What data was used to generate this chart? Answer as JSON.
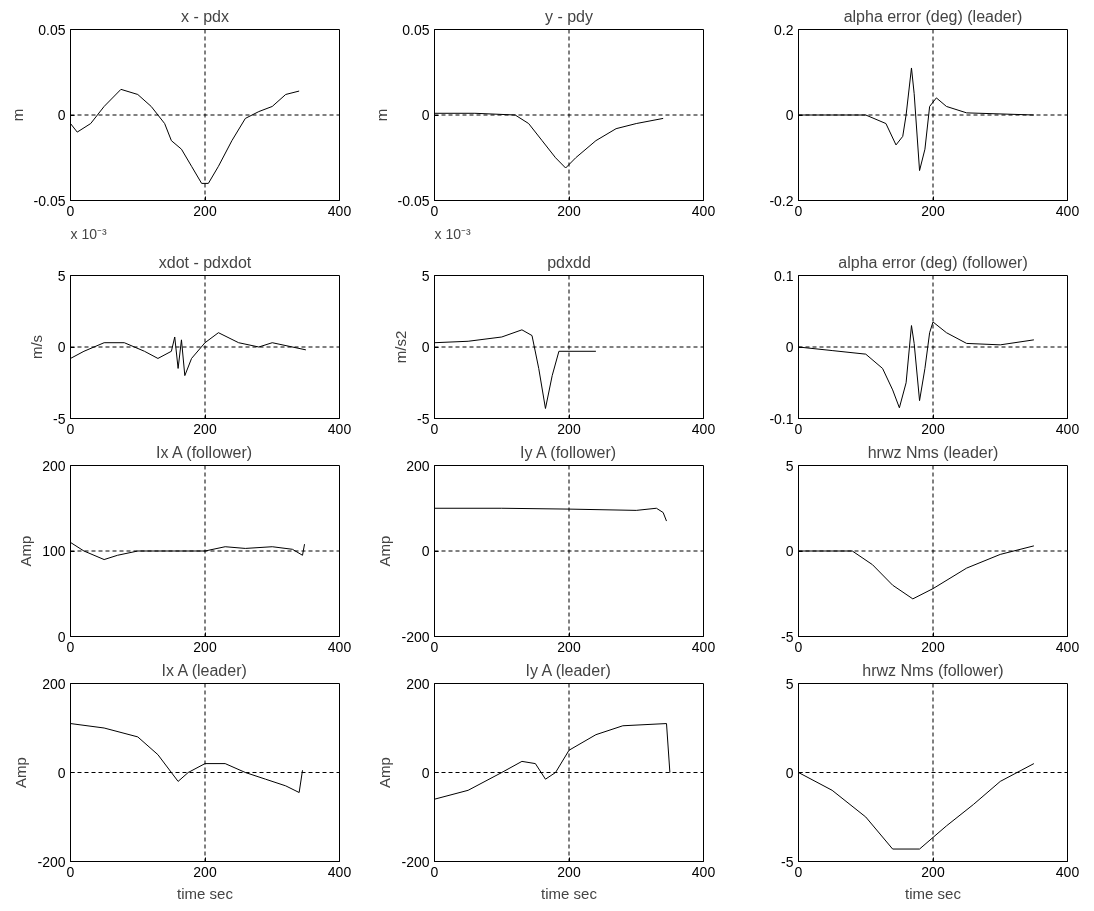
{
  "chart_data": [
    {
      "type": "line",
      "title": "x - pdx",
      "ylabel": "m",
      "xlim": [
        0,
        400
      ],
      "xticks": [
        0,
        200,
        400
      ],
      "ylim": [
        -0.05,
        0.05
      ],
      "yticks": [
        -0.05,
        0,
        0.05
      ],
      "ref_lines": [
        {
          "axis": "x",
          "value": 200,
          "color": "#000000",
          "line_style": "dashed"
        },
        {
          "axis": "y",
          "value": 0,
          "color": "#000000",
          "line_style": "dashed"
        }
      ],
      "x": [
        0,
        10,
        30,
        50,
        75,
        100,
        120,
        140,
        150,
        165,
        180,
        195,
        205,
        220,
        240,
        260,
        280,
        300,
        320,
        340
      ],
      "series": [
        {
          "color": "#000000",
          "values": [
            -0.005,
            -0.01,
            -0.005,
            0.005,
            0.015,
            0.012,
            0.005,
            -0.005,
            -0.015,
            -0.02,
            -0.03,
            -0.04,
            -0.04,
            -0.03,
            -0.015,
            -0.002,
            0.002,
            0.005,
            0.012,
            0.014
          ]
        }
      ],
      "line_style": "solid",
      "grid": false
    },
    {
      "type": "line",
      "title": "y - pdy",
      "ylabel": "m",
      "xlim": [
        0,
        400
      ],
      "xticks": [
        0,
        200,
        400
      ],
      "ylim": [
        -0.05,
        0.05
      ],
      "yticks": [
        -0.05,
        0,
        0.05
      ],
      "ref_lines": [
        {
          "axis": "x",
          "value": 200,
          "color": "#000000",
          "line_style": "dashed"
        },
        {
          "axis": "y",
          "value": 0,
          "color": "#000000",
          "line_style": "dashed"
        }
      ],
      "x": [
        0,
        60,
        120,
        140,
        160,
        180,
        195,
        210,
        240,
        270,
        300,
        340
      ],
      "series": [
        {
          "color": "#000000",
          "values": [
            0.001,
            0.001,
            0,
            -0.005,
            -0.015,
            -0.025,
            -0.031,
            -0.025,
            -0.015,
            -0.008,
            -0.005,
            -0.002
          ]
        }
      ],
      "line_style": "solid",
      "grid": false
    },
    {
      "type": "line",
      "title": "alpha error (deg) (leader)",
      "xlim": [
        0,
        400
      ],
      "xticks": [
        0,
        200,
        400
      ],
      "ylim": [
        -0.2,
        0.2
      ],
      "yticks": [
        -0.2,
        0,
        0.2
      ],
      "ref_lines": [
        {
          "axis": "x",
          "value": 200,
          "color": "#000000",
          "line_style": "dashed"
        },
        {
          "axis": "y",
          "value": 0,
          "color": "#000000",
          "line_style": "dashed"
        }
      ],
      "x": [
        0,
        100,
        130,
        145,
        155,
        160,
        168,
        172,
        180,
        188,
        195,
        205,
        220,
        250,
        350
      ],
      "series": [
        {
          "color": "#000000",
          "values": [
            0,
            0,
            -0.02,
            -0.07,
            -0.05,
            0,
            0.11,
            0.05,
            -0.13,
            -0.08,
            0.02,
            0.04,
            0.02,
            0.005,
            0
          ]
        }
      ],
      "line_style": "solid",
      "grid": false
    },
    {
      "type": "line",
      "title": "xdot - pdxdot",
      "ylabel": "m/s",
      "annotations": [
        "x 10⁻³"
      ],
      "xlim": [
        0,
        400
      ],
      "xticks": [
        0,
        200,
        400
      ],
      "ylim": [
        -5,
        5
      ],
      "yticks": [
        -5,
        0,
        5
      ],
      "ref_lines": [
        {
          "axis": "x",
          "value": 200,
          "color": "#000000",
          "line_style": "dashed"
        },
        {
          "axis": "y",
          "value": 0,
          "color": "#000000",
          "line_style": "dashed"
        }
      ],
      "x": [
        0,
        20,
        50,
        80,
        110,
        130,
        150,
        155,
        160,
        165,
        170,
        180,
        200,
        220,
        250,
        280,
        300,
        350
      ],
      "series": [
        {
          "color": "#000000",
          "values": [
            -0.8,
            -0.3,
            0.3,
            0.3,
            -0.3,
            -0.8,
            -0.3,
            0.7,
            -1.5,
            0.5,
            -2,
            -0.8,
            0.3,
            1,
            0.3,
            0,
            0.3,
            -0.2
          ]
        }
      ],
      "line_style": "solid",
      "grid": false
    },
    {
      "type": "line",
      "title": "pdxdd",
      "ylabel": "m/s2",
      "annotations": [
        "x 10⁻³"
      ],
      "xlim": [
        0,
        400
      ],
      "xticks": [
        0,
        200,
        400
      ],
      "ylim": [
        -5,
        5
      ],
      "yticks": [
        -5,
        0,
        5
      ],
      "ref_lines": [
        {
          "axis": "x",
          "value": 200,
          "color": "#000000",
          "line_style": "dashed"
        },
        {
          "axis": "y",
          "value": 0,
          "color": "#000000",
          "line_style": "dashed"
        }
      ],
      "x": [
        0,
        50,
        100,
        130,
        145,
        155,
        165,
        175,
        185,
        200,
        240
      ],
      "series": [
        {
          "color": "#000000",
          "values": [
            0.3,
            0.4,
            0.7,
            1.2,
            0.8,
            -1.5,
            -4.3,
            -2,
            -0.3,
            -0.3,
            -0.3
          ]
        }
      ],
      "line_style": "solid",
      "grid": false
    },
    {
      "type": "line",
      "title": "alpha error (deg) (follower)",
      "xlim": [
        0,
        400
      ],
      "xticks": [
        0,
        200,
        400
      ],
      "ylim": [
        -0.1,
        0.1
      ],
      "yticks": [
        -0.1,
        0,
        0.1
      ],
      "ref_lines": [
        {
          "axis": "x",
          "value": 200,
          "color": "#000000",
          "line_style": "dashed"
        },
        {
          "axis": "y",
          "value": 0,
          "color": "#000000",
          "line_style": "dashed"
        }
      ],
      "x": [
        0,
        50,
        100,
        125,
        140,
        150,
        160,
        168,
        172,
        180,
        188,
        195,
        200,
        220,
        250,
        300,
        350
      ],
      "series": [
        {
          "color": "#000000",
          "values": [
            0,
            -0.005,
            -0.01,
            -0.03,
            -0.06,
            -0.085,
            -0.05,
            0.03,
            0.005,
            -0.075,
            -0.03,
            0.02,
            0.035,
            0.02,
            0.005,
            0.003,
            0.01
          ]
        }
      ],
      "line_style": "solid",
      "grid": false
    },
    {
      "type": "line",
      "title": "Ix A (follower)",
      "ylabel": "Amp",
      "xlim": [
        0,
        400
      ],
      "xticks": [
        0,
        200,
        400
      ],
      "ylim": [
        0,
        200
      ],
      "yticks": [
        0,
        100,
        200
      ],
      "ref_lines": [
        {
          "axis": "x",
          "value": 200,
          "color": "#000000",
          "line_style": "dashed"
        },
        {
          "axis": "y",
          "value": 100,
          "color": "#000000",
          "line_style": "dashed"
        }
      ],
      "x": [
        0,
        20,
        50,
        70,
        100,
        200,
        230,
        260,
        300,
        330,
        345,
        348
      ],
      "series": [
        {
          "color": "#000000",
          "values": [
            110,
            100,
            90,
            95,
            100,
            100,
            105,
            103,
            105,
            102,
            95,
            108
          ]
        }
      ],
      "line_style": "solid",
      "grid": false
    },
    {
      "type": "line",
      "title": "Iy A (follower)",
      "ylabel": "Amp",
      "xlim": [
        0,
        400
      ],
      "xticks": [
        0,
        200,
        400
      ],
      "ylim": [
        -200,
        200
      ],
      "yticks": [
        -200,
        0,
        200
      ],
      "ref_lines": [
        {
          "axis": "x",
          "value": 200,
          "color": "#000000",
          "line_style": "dashed"
        },
        {
          "axis": "y",
          "value": 0,
          "color": "#000000",
          "line_style": "dashed"
        }
      ],
      "x": [
        0,
        100,
        200,
        300,
        330,
        340,
        345
      ],
      "series": [
        {
          "color": "#000000",
          "values": [
            100,
            100,
            98,
            95,
            100,
            90,
            70
          ]
        }
      ],
      "line_style": "solid",
      "grid": false
    },
    {
      "type": "line",
      "title": "hrwz Nms (leader)",
      "xlim": [
        0,
        400
      ],
      "xticks": [
        0,
        200,
        400
      ],
      "ylim": [
        -5,
        5
      ],
      "yticks": [
        -5,
        0,
        5
      ],
      "ref_lines": [
        {
          "axis": "x",
          "value": 200,
          "color": "#000000",
          "line_style": "dashed"
        },
        {
          "axis": "y",
          "value": 0,
          "color": "#000000",
          "line_style": "dashed"
        }
      ],
      "x": [
        0,
        80,
        110,
        140,
        170,
        200,
        250,
        300,
        350
      ],
      "series": [
        {
          "color": "#000000",
          "values": [
            0,
            0,
            -0.8,
            -2,
            -2.8,
            -2.2,
            -1,
            -0.2,
            0.3
          ]
        }
      ],
      "line_style": "solid",
      "grid": false
    },
    {
      "type": "line",
      "title": "Ix A (leader)",
      "ylabel": "Amp",
      "xlabel": "time sec",
      "xlim": [
        0,
        400
      ],
      "xticks": [
        0,
        200,
        400
      ],
      "ylim": [
        -200,
        200
      ],
      "yticks": [
        -200,
        0,
        200
      ],
      "ref_lines": [
        {
          "axis": "x",
          "value": 200,
          "color": "#000000",
          "line_style": "dashed"
        },
        {
          "axis": "y",
          "value": 0,
          "color": "#000000",
          "line_style": "dashed"
        }
      ],
      "x": [
        0,
        50,
        100,
        130,
        150,
        160,
        175,
        200,
        230,
        260,
        290,
        320,
        340,
        345
      ],
      "series": [
        {
          "color": "#000000",
          "values": [
            110,
            100,
            80,
            40,
            0,
            -20,
            0,
            20,
            20,
            0,
            -15,
            -30,
            -45,
            5
          ]
        }
      ],
      "line_style": "solid",
      "grid": false
    },
    {
      "type": "line",
      "title": "Iy A (leader)",
      "ylabel": "Amp",
      "xlabel": "time sec",
      "xlim": [
        0,
        400
      ],
      "xticks": [
        0,
        200,
        400
      ],
      "ylim": [
        -200,
        200
      ],
      "yticks": [
        -200,
        0,
        200
      ],
      "ref_lines": [
        {
          "axis": "x",
          "value": 200,
          "color": "#000000",
          "line_style": "dashed"
        },
        {
          "axis": "y",
          "value": 0,
          "color": "#000000",
          "line_style": "dashed"
        }
      ],
      "x": [
        0,
        50,
        100,
        130,
        150,
        165,
        180,
        200,
        240,
        280,
        345,
        350
      ],
      "series": [
        {
          "color": "#000000",
          "values": [
            -60,
            -40,
            0,
            25,
            20,
            -15,
            0,
            50,
            85,
            105,
            110,
            0
          ]
        }
      ],
      "line_style": "solid",
      "grid": false
    },
    {
      "type": "line",
      "title": "hrwz Nms (follower)",
      "xlabel": "time sec",
      "xlim": [
        0,
        400
      ],
      "xticks": [
        0,
        200,
        400
      ],
      "ylim": [
        -5,
        5
      ],
      "yticks": [
        -5,
        0,
        5
      ],
      "ref_lines": [
        {
          "axis": "x",
          "value": 200,
          "color": "#000000",
          "line_style": "dashed"
        },
        {
          "axis": "y",
          "value": 0,
          "color": "#000000",
          "line_style": "dashed"
        }
      ],
      "x": [
        0,
        50,
        100,
        140,
        180,
        220,
        260,
        300,
        350
      ],
      "series": [
        {
          "color": "#000000",
          "values": [
            0,
            -1,
            -2.5,
            -4.3,
            -4.3,
            -3,
            -1.8,
            -0.5,
            0.5
          ]
        }
      ],
      "line_style": "solid",
      "grid": false
    }
  ]
}
